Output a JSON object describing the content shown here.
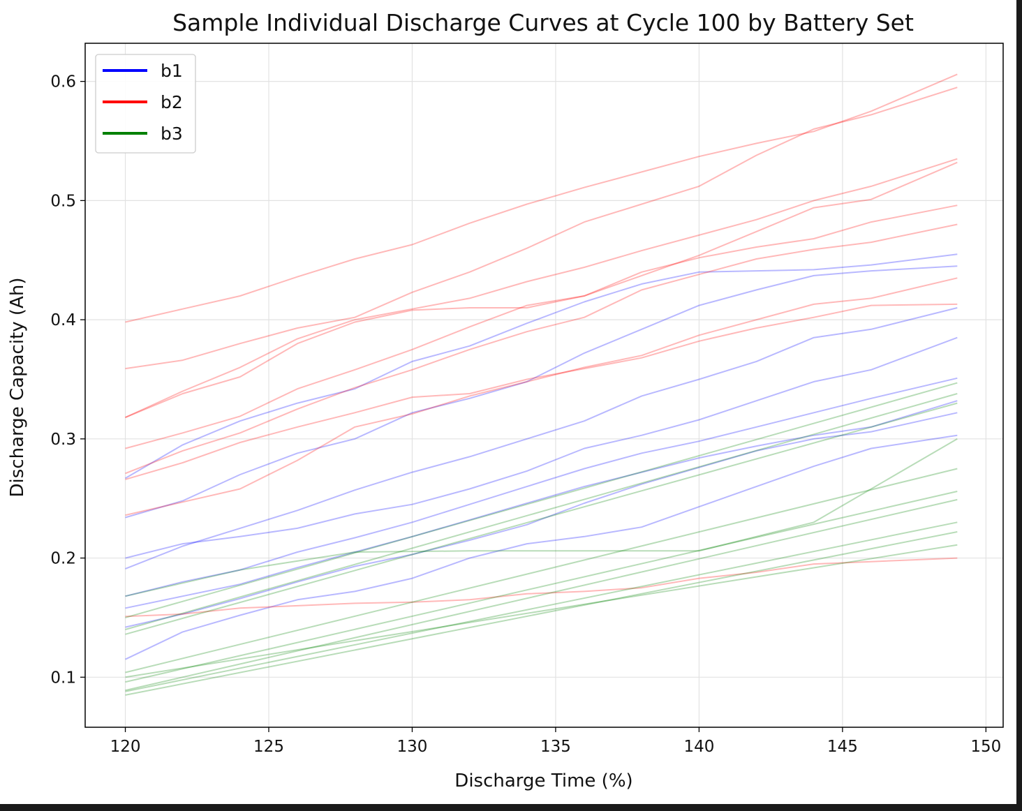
{
  "chart_data": {
    "type": "line",
    "title": "Sample Individual Discharge Curves at Cycle 100 by Battery Set",
    "xlabel": "Discharge Time (%)",
    "ylabel": "Discharge Capacity (Ah)",
    "xlim": [
      118.6,
      150.6
    ],
    "ylim": [
      0.058,
      0.632
    ],
    "xticks": [
      120,
      125,
      130,
      135,
      140,
      145,
      150
    ],
    "yticks": [
      0.1,
      0.2,
      0.3,
      0.4,
      0.5,
      0.6
    ],
    "xtick_labels": [
      "120",
      "125",
      "130",
      "135",
      "140",
      "145",
      "150"
    ],
    "ytick_labels": [
      "0.1",
      "0.2",
      "0.3",
      "0.4",
      "0.5",
      "0.6"
    ],
    "grid": true,
    "legend_position": "top-left",
    "legend": [
      {
        "name": "b1",
        "color": "#0000ff"
      },
      {
        "name": "b2",
        "color": "#ff0000"
      },
      {
        "name": "b3",
        "color": "#008000"
      }
    ],
    "series": [
      {
        "name": "b1",
        "color": "#0000ff",
        "x": [
          120,
          122,
          124,
          126,
          128,
          130,
          132,
          134,
          136,
          138,
          140,
          142,
          144,
          146,
          149
        ],
        "values": [
          0.267,
          0.295,
          0.315,
          0.33,
          0.342,
          0.365,
          0.378,
          0.397,
          0.415,
          0.43,
          0.44,
          0.441,
          0.442,
          0.446,
          0.455
        ]
      },
      {
        "name": "b1",
        "color": "#0000ff",
        "x": [
          120,
          122,
          124,
          126,
          128,
          130,
          132,
          134,
          136,
          138,
          140,
          142,
          144,
          146,
          149
        ],
        "values": [
          0.234,
          0.248,
          0.27,
          0.288,
          0.3,
          0.322,
          0.334,
          0.348,
          0.372,
          0.392,
          0.412,
          0.425,
          0.437,
          0.441,
          0.445
        ]
      },
      {
        "name": "b1",
        "color": "#0000ff",
        "x": [
          120,
          122,
          124,
          126,
          128,
          130,
          132,
          134,
          136,
          138,
          140,
          142,
          144,
          146,
          149
        ],
        "values": [
          0.191,
          0.21,
          0.225,
          0.24,
          0.257,
          0.272,
          0.285,
          0.3,
          0.315,
          0.336,
          0.35,
          0.365,
          0.385,
          0.392,
          0.41
        ]
      },
      {
        "name": "b1",
        "color": "#0000ff",
        "x": [
          120,
          122,
          124,
          126,
          128,
          130,
          132,
          134,
          136,
          138,
          140,
          142,
          144,
          146,
          149
        ],
        "values": [
          0.2,
          0.212,
          0.218,
          0.225,
          0.237,
          0.245,
          0.258,
          0.273,
          0.292,
          0.303,
          0.316,
          0.332,
          0.348,
          0.358,
          0.385
        ]
      },
      {
        "name": "b1",
        "color": "#0000ff",
        "x": [
          120,
          122,
          124,
          126,
          128,
          130,
          132,
          134,
          136,
          138,
          140,
          142,
          144,
          146,
          149
        ],
        "values": [
          0.168,
          0.18,
          0.19,
          0.205,
          0.217,
          0.23,
          0.245,
          0.26,
          0.275,
          0.288,
          0.298,
          0.31,
          0.322,
          0.334,
          0.351
        ]
      },
      {
        "name": "b1",
        "color": "#0000ff",
        "x": [
          120,
          122,
          124,
          126,
          128,
          130,
          132,
          134,
          136,
          138,
          140,
          142,
          144,
          146,
          149
        ],
        "values": [
          0.158,
          0.168,
          0.178,
          0.192,
          0.205,
          0.218,
          0.232,
          0.246,
          0.26,
          0.272,
          0.284,
          0.294,
          0.303,
          0.31,
          0.332
        ]
      },
      {
        "name": "b1",
        "color": "#0000ff",
        "x": [
          120,
          122,
          124,
          126,
          128,
          130,
          132,
          134,
          136,
          138,
          140,
          142,
          144,
          146,
          149
        ],
        "values": [
          0.142,
          0.153,
          0.166,
          0.18,
          0.193,
          0.203,
          0.215,
          0.228,
          0.246,
          0.262,
          0.276,
          0.29,
          0.3,
          0.306,
          0.322
        ]
      },
      {
        "name": "b1",
        "color": "#0000ff",
        "x": [
          120,
          122,
          124,
          126,
          128,
          130,
          132,
          134,
          136,
          138,
          140,
          142,
          144,
          146,
          149
        ],
        "values": [
          0.115,
          0.138,
          0.152,
          0.165,
          0.172,
          0.183,
          0.2,
          0.212,
          0.218,
          0.226,
          0.243,
          0.26,
          0.277,
          0.292,
          0.303
        ]
      },
      {
        "name": "b2",
        "color": "#ff0000",
        "x": [
          120,
          122,
          124,
          126,
          128,
          130,
          132,
          134,
          136,
          138,
          140,
          142,
          144,
          146,
          149
        ],
        "values": [
          0.398,
          0.409,
          0.42,
          0.436,
          0.451,
          0.463,
          0.481,
          0.497,
          0.511,
          0.524,
          0.537,
          0.548,
          0.558,
          0.575,
          0.606
        ]
      },
      {
        "name": "b2",
        "color": "#ff0000",
        "x": [
          120,
          122,
          124,
          126,
          128,
          130,
          132,
          134,
          136,
          138,
          140,
          142,
          144,
          146,
          149
        ],
        "values": [
          0.359,
          0.366,
          0.38,
          0.393,
          0.402,
          0.423,
          0.44,
          0.46,
          0.482,
          0.497,
          0.512,
          0.538,
          0.56,
          0.572,
          0.595
        ]
      },
      {
        "name": "b2",
        "color": "#ff0000",
        "x": [
          120,
          122,
          124,
          126,
          128,
          130,
          132,
          134,
          136,
          138,
          140,
          142,
          144,
          146,
          149
        ],
        "values": [
          0.318,
          0.34,
          0.36,
          0.384,
          0.4,
          0.409,
          0.418,
          0.432,
          0.444,
          0.458,
          0.471,
          0.484,
          0.5,
          0.512,
          0.535
        ]
      },
      {
        "name": "b2",
        "color": "#ff0000",
        "x": [
          120,
          122,
          124,
          126,
          128,
          130,
          132,
          134,
          136,
          138,
          140,
          142,
          144,
          146,
          149
        ],
        "values": [
          0.318,
          0.338,
          0.352,
          0.38,
          0.398,
          0.408,
          0.41,
          0.41,
          0.42,
          0.437,
          0.454,
          0.474,
          0.494,
          0.501,
          0.532
        ]
      },
      {
        "name": "b2",
        "color": "#ff0000",
        "x": [
          120,
          122,
          124,
          126,
          128,
          130,
          132,
          134,
          136,
          138,
          140,
          142,
          144,
          146,
          149
        ],
        "values": [
          0.292,
          0.305,
          0.319,
          0.342,
          0.358,
          0.375,
          0.394,
          0.412,
          0.42,
          0.44,
          0.452,
          0.461,
          0.468,
          0.482,
          0.496
        ]
      },
      {
        "name": "b2",
        "color": "#ff0000",
        "x": [
          120,
          122,
          124,
          126,
          128,
          130,
          132,
          134,
          136,
          138,
          140,
          142,
          144,
          146,
          149
        ],
        "values": [
          0.271,
          0.29,
          0.305,
          0.325,
          0.343,
          0.358,
          0.375,
          0.39,
          0.402,
          0.425,
          0.438,
          0.451,
          0.459,
          0.465,
          0.48
        ]
      },
      {
        "name": "b2",
        "color": "#ff0000",
        "x": [
          120,
          122,
          124,
          126,
          128,
          130,
          132,
          134,
          136,
          138,
          140,
          142,
          144,
          146,
          149
        ],
        "values": [
          0.236,
          0.247,
          0.258,
          0.282,
          0.31,
          0.321,
          0.336,
          0.348,
          0.36,
          0.37,
          0.387,
          0.4,
          0.413,
          0.418,
          0.435
        ]
      },
      {
        "name": "b2",
        "color": "#ff0000",
        "x": [
          120,
          122,
          124,
          126,
          128,
          130,
          132,
          134,
          136,
          138,
          140,
          142,
          144,
          146,
          149
        ],
        "values": [
          0.266,
          0.28,
          0.297,
          0.31,
          0.322,
          0.335,
          0.338,
          0.35,
          0.359,
          0.368,
          0.382,
          0.393,
          0.402,
          0.412,
          0.413
        ]
      },
      {
        "name": "b2",
        "color": "#ff0000",
        "x": [
          120,
          122,
          124,
          126,
          128,
          130,
          132,
          134,
          136,
          138,
          140,
          142,
          144,
          146,
          149
        ],
        "values": [
          0.151,
          0.153,
          0.158,
          0.16,
          0.162,
          0.163,
          0.165,
          0.17,
          0.172,
          0.175,
          0.183,
          0.188,
          0.195,
          0.197,
          0.2
        ]
      },
      {
        "name": "b3",
        "color": "#008000",
        "x": [
          120,
          149
        ],
        "values": [
          0.15,
          0.347
        ]
      },
      {
        "name": "b3",
        "color": "#008000",
        "x": [
          120,
          149
        ],
        "values": [
          0.14,
          0.338
        ]
      },
      {
        "name": "b3",
        "color": "#008000",
        "x": [
          120,
          149
        ],
        "values": [
          0.136,
          0.33
        ]
      },
      {
        "name": "b3",
        "color": "#008000",
        "x": [
          120,
          124,
          128,
          132,
          136,
          140,
          144,
          149
        ],
        "values": [
          0.168,
          0.19,
          0.205,
          0.206,
          0.206,
          0.206,
          0.23,
          0.3
        ]
      },
      {
        "name": "b3",
        "color": "#008000",
        "x": [
          120,
          149
        ],
        "values": [
          0.104,
          0.275
        ]
      },
      {
        "name": "b3",
        "color": "#008000",
        "x": [
          120,
          149
        ],
        "values": [
          0.096,
          0.256
        ]
      },
      {
        "name": "b3",
        "color": "#008000",
        "x": [
          120,
          149
        ],
        "values": [
          0.089,
          0.249
        ]
      },
      {
        "name": "b3",
        "color": "#008000",
        "x": [
          120,
          149
        ],
        "values": [
          0.088,
          0.23
        ]
      },
      {
        "name": "b3",
        "color": "#008000",
        "x": [
          120,
          149
        ],
        "values": [
          0.085,
          0.222
        ]
      },
      {
        "name": "b3",
        "color": "#008000",
        "x": [
          120,
          149
        ],
        "values": [
          0.1,
          0.211
        ]
      }
    ]
  }
}
